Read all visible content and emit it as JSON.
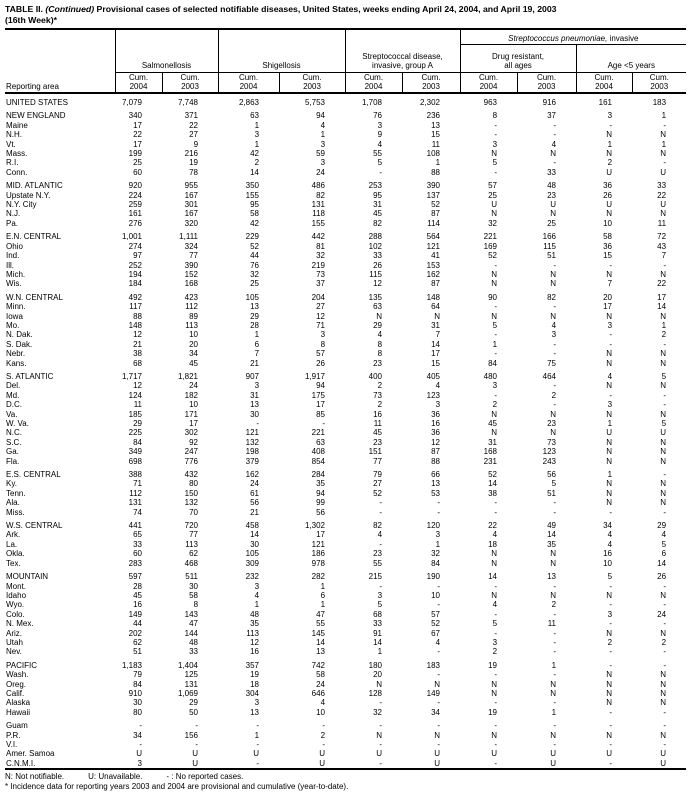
{
  "title": {
    "part1": "TABLE II. ",
    "part2": "(Continued)",
    "part3": " Provisional cases of selected notifiable diseases, United States, weeks ending April 24, 2004, and April 19, 2003",
    "line2": "(16th Week)*"
  },
  "header": {
    "reporting_area": "Reporting area",
    "group_salmonellosis": "Salmonellosis",
    "group_shigellosis": "Shigellosis",
    "group_strep_a_line1": "Streptococcal disease,",
    "group_strep_a_line2": "invasive, group A",
    "pneumo_italic": "Streptococcus pneumoniae,",
    "pneumo_rest": " invasive",
    "sub_drug_line1": "Drug resistant,",
    "sub_drug_line2": "all ages",
    "sub_age": "Age <5 years",
    "cum_label": "Cum.",
    "cum_years": [
      "2004",
      "2003",
      "2004",
      "2003",
      "2004",
      "2003",
      "2004",
      "2003",
      "2004",
      "2003"
    ]
  },
  "table": {
    "sections": [
      {
        "rows": [
          [
            "UNITED STATES",
            "7,079",
            "7,748",
            "2,863",
            "5,753",
            "1,708",
            "2,302",
            "963",
            "916",
            "161",
            "183"
          ]
        ]
      },
      {
        "rows": [
          [
            "NEW ENGLAND",
            "340",
            "371",
            "63",
            "94",
            "76",
            "236",
            "8",
            "37",
            "3",
            "1"
          ],
          [
            "Maine",
            "17",
            "22",
            "1",
            "4",
            "3",
            "13",
            "-",
            "-",
            "-",
            "-"
          ],
          [
            "N.H.",
            "22",
            "27",
            "3",
            "1",
            "9",
            "15",
            "-",
            "-",
            "N",
            "N"
          ],
          [
            "Vt.",
            "17",
            "9",
            "1",
            "3",
            "4",
            "11",
            "3",
            "4",
            "1",
            "1"
          ],
          [
            "Mass.",
            "199",
            "216",
            "42",
            "59",
            "55",
            "108",
            "N",
            "N",
            "N",
            "N"
          ],
          [
            "R.I.",
            "25",
            "19",
            "2",
            "3",
            "5",
            "1",
            "5",
            "-",
            "2",
            "-"
          ],
          [
            "Conn.",
            "60",
            "78",
            "14",
            "24",
            "-",
            "88",
            "-",
            "33",
            "U",
            "U"
          ]
        ]
      },
      {
        "rows": [
          [
            "MID. ATLANTIC",
            "920",
            "955",
            "350",
            "486",
            "253",
            "390",
            "57",
            "48",
            "36",
            "33"
          ],
          [
            "Upstate N.Y.",
            "224",
            "167",
            "155",
            "82",
            "95",
            "137",
            "25",
            "23",
            "26",
            "22"
          ],
          [
            "N.Y. City",
            "259",
            "301",
            "95",
            "131",
            "31",
            "52",
            "U",
            "U",
            "U",
            "U"
          ],
          [
            "N.J.",
            "161",
            "167",
            "58",
            "118",
            "45",
            "87",
            "N",
            "N",
            "N",
            "N"
          ],
          [
            "Pa.",
            "276",
            "320",
            "42",
            "155",
            "82",
            "114",
            "32",
            "25",
            "10",
            "11"
          ]
        ]
      },
      {
        "rows": [
          [
            "E.N. CENTRAL",
            "1,001",
            "1,111",
            "229",
            "442",
            "288",
            "564",
            "221",
            "166",
            "58",
            "72"
          ],
          [
            "Ohio",
            "274",
            "324",
            "52",
            "81",
            "102",
            "121",
            "169",
            "115",
            "36",
            "43"
          ],
          [
            "Ind.",
            "97",
            "77",
            "44",
            "32",
            "33",
            "41",
            "52",
            "51",
            "15",
            "7"
          ],
          [
            "Ill.",
            "252",
            "390",
            "76",
            "219",
            "26",
            "153",
            "-",
            "-",
            "-",
            "-"
          ],
          [
            "Mich.",
            "194",
            "152",
            "32",
            "73",
            "115",
            "162",
            "N",
            "N",
            "N",
            "N"
          ],
          [
            "Wis.",
            "184",
            "168",
            "25",
            "37",
            "12",
            "87",
            "N",
            "N",
            "7",
            "22"
          ]
        ]
      },
      {
        "rows": [
          [
            "W.N. CENTRAL",
            "492",
            "423",
            "105",
            "204",
            "135",
            "148",
            "90",
            "82",
            "20",
            "17"
          ],
          [
            "Minn.",
            "117",
            "112",
            "13",
            "27",
            "63",
            "64",
            "-",
            "-",
            "17",
            "14"
          ],
          [
            "Iowa",
            "88",
            "89",
            "29",
            "12",
            "N",
            "N",
            "N",
            "N",
            "N",
            "N"
          ],
          [
            "Mo.",
            "148",
            "113",
            "28",
            "71",
            "29",
            "31",
            "5",
            "4",
            "3",
            "1"
          ],
          [
            "N. Dak.",
            "12",
            "10",
            "1",
            "3",
            "4",
            "7",
            "-",
            "3",
            "-",
            "2"
          ],
          [
            "S. Dak.",
            "21",
            "20",
            "6",
            "8",
            "8",
            "14",
            "1",
            "-",
            "-",
            "-"
          ],
          [
            "Nebr.",
            "38",
            "34",
            "7",
            "57",
            "8",
            "17",
            "-",
            "-",
            "N",
            "N"
          ],
          [
            "Kans.",
            "68",
            "45",
            "21",
            "26",
            "23",
            "15",
            "84",
            "75",
            "N",
            "N"
          ]
        ]
      },
      {
        "rows": [
          [
            "S. ATLANTIC",
            "1,717",
            "1,821",
            "907",
            "1,917",
            "400",
            "405",
            "480",
            "464",
            "4",
            "5"
          ],
          [
            "Del.",
            "12",
            "24",
            "3",
            "94",
            "2",
            "4",
            "3",
            "-",
            "N",
            "N"
          ],
          [
            "Md.",
            "124",
            "182",
            "31",
            "175",
            "73",
            "123",
            "-",
            "2",
            "-",
            "-"
          ],
          [
            "D.C.",
            "11",
            "10",
            "13",
            "17",
            "2",
            "3",
            "2",
            "-",
            "3",
            "-"
          ],
          [
            "Va.",
            "185",
            "171",
            "30",
            "85",
            "16",
            "36",
            "N",
            "N",
            "N",
            "N"
          ],
          [
            "W. Va.",
            "29",
            "17",
            "-",
            "-",
            "11",
            "16",
            "45",
            "23",
            "1",
            "5"
          ],
          [
            "N.C.",
            "225",
            "302",
            "121",
            "221",
            "45",
            "36",
            "N",
            "N",
            "U",
            "U"
          ],
          [
            "S.C.",
            "84",
            "92",
            "132",
            "63",
            "23",
            "12",
            "31",
            "73",
            "N",
            "N"
          ],
          [
            "Ga.",
            "349",
            "247",
            "198",
            "408",
            "151",
            "87",
            "168",
            "123",
            "N",
            "N"
          ],
          [
            "Fla.",
            "698",
            "776",
            "379",
            "854",
            "77",
            "88",
            "231",
            "243",
            "N",
            "N"
          ]
        ]
      },
      {
        "rows": [
          [
            "E.S. CENTRAL",
            "388",
            "432",
            "162",
            "284",
            "79",
            "66",
            "52",
            "56",
            "1",
            "-"
          ],
          [
            "Ky.",
            "71",
            "80",
            "24",
            "35",
            "27",
            "13",
            "14",
            "5",
            "N",
            "N"
          ],
          [
            "Tenn.",
            "112",
            "150",
            "61",
            "94",
            "52",
            "53",
            "38",
            "51",
            "N",
            "N"
          ],
          [
            "Ala.",
            "131",
            "132",
            "56",
            "99",
            "-",
            "-",
            "-",
            "-",
            "N",
            "N"
          ],
          [
            "Miss.",
            "74",
            "70",
            "21",
            "56",
            "-",
            "-",
            "-",
            "-",
            "-",
            "-"
          ]
        ]
      },
      {
        "rows": [
          [
            "W.S. CENTRAL",
            "441",
            "720",
            "458",
            "1,302",
            "82",
            "120",
            "22",
            "49",
            "34",
            "29"
          ],
          [
            "Ark.",
            "65",
            "77",
            "14",
            "17",
            "4",
            "3",
            "4",
            "14",
            "4",
            "4"
          ],
          [
            "La.",
            "33",
            "113",
            "30",
            "121",
            "-",
            "1",
            "18",
            "35",
            "4",
            "5"
          ],
          [
            "Okla.",
            "60",
            "62",
            "105",
            "186",
            "23",
            "32",
            "N",
            "N",
            "16",
            "6"
          ],
          [
            "Tex.",
            "283",
            "468",
            "309",
            "978",
            "55",
            "84",
            "N",
            "N",
            "10",
            "14"
          ]
        ]
      },
      {
        "rows": [
          [
            "MOUNTAIN",
            "597",
            "511",
            "232",
            "282",
            "215",
            "190",
            "14",
            "13",
            "5",
            "26"
          ],
          [
            "Mont.",
            "28",
            "30",
            "3",
            "1",
            "-",
            "-",
            "-",
            "-",
            "-",
            "-"
          ],
          [
            "Idaho",
            "45",
            "58",
            "4",
            "6",
            "3",
            "10",
            "N",
            "N",
            "N",
            "N"
          ],
          [
            "Wyo.",
            "16",
            "8",
            "1",
            "1",
            "5",
            "-",
            "4",
            "2",
            "-",
            "-"
          ],
          [
            "Colo.",
            "149",
            "143",
            "48",
            "47",
            "68",
            "57",
            "-",
            "-",
            "3",
            "24"
          ],
          [
            "N. Mex.",
            "44",
            "47",
            "35",
            "55",
            "33",
            "52",
            "5",
            "11",
            "-",
            "-"
          ],
          [
            "Ariz.",
            "202",
            "144",
            "113",
            "145",
            "91",
            "67",
            "-",
            "-",
            "N",
            "N"
          ],
          [
            "Utah",
            "62",
            "48",
            "12",
            "14",
            "14",
            "4",
            "3",
            "-",
            "2",
            "2"
          ],
          [
            "Nev.",
            "51",
            "33",
            "16",
            "13",
            "1",
            "-",
            "2",
            "-",
            "-",
            "-"
          ]
        ]
      },
      {
        "rows": [
          [
            "PACIFIC",
            "1,183",
            "1,404",
            "357",
            "742",
            "180",
            "183",
            "19",
            "1",
            "-",
            "-"
          ],
          [
            "Wash.",
            "79",
            "125",
            "19",
            "58",
            "20",
            "-",
            "-",
            "-",
            "N",
            "N"
          ],
          [
            "Oreg.",
            "84",
            "131",
            "18",
            "24",
            "N",
            "N",
            "N",
            "N",
            "N",
            "N"
          ],
          [
            "Calif.",
            "910",
            "1,069",
            "304",
            "646",
            "128",
            "149",
            "N",
            "N",
            "N",
            "N"
          ],
          [
            "Alaska",
            "30",
            "29",
            "3",
            "4",
            "-",
            "-",
            "-",
            "-",
            "N",
            "N"
          ],
          [
            "Hawaii",
            "80",
            "50",
            "13",
            "10",
            "32",
            "34",
            "19",
            "1",
            "-",
            "-"
          ]
        ]
      },
      {
        "rows": [
          [
            "Guam",
            "-",
            "-",
            "-",
            "-",
            "-",
            "-",
            "-",
            "-",
            "-",
            "-"
          ],
          [
            "P.R.",
            "34",
            "156",
            "1",
            "2",
            "N",
            "N",
            "N",
            "N",
            "N",
            "N"
          ],
          [
            "V.I.",
            "-",
            "-",
            "-",
            "-",
            "-",
            "-",
            "-",
            "-",
            "-",
            "-"
          ],
          [
            "Amer. Samoa",
            "U",
            "U",
            "U",
            "U",
            "U",
            "U",
            "U",
            "U",
            "U",
            "U"
          ],
          [
            "C.N.M.I.",
            "3",
            "U",
            "-",
            "U",
            "-",
            "U",
            "-",
            "U",
            "-",
            "U"
          ]
        ]
      }
    ]
  },
  "footnotes": {
    "legend1": "N: Not notifiable.",
    "legend2": "U: Unavailable.",
    "legend3": "- : No reported cases.",
    "note": "* Incidence data for reporting years 2003 and 2004 are provisional and cumulative (year-to-date)."
  }
}
